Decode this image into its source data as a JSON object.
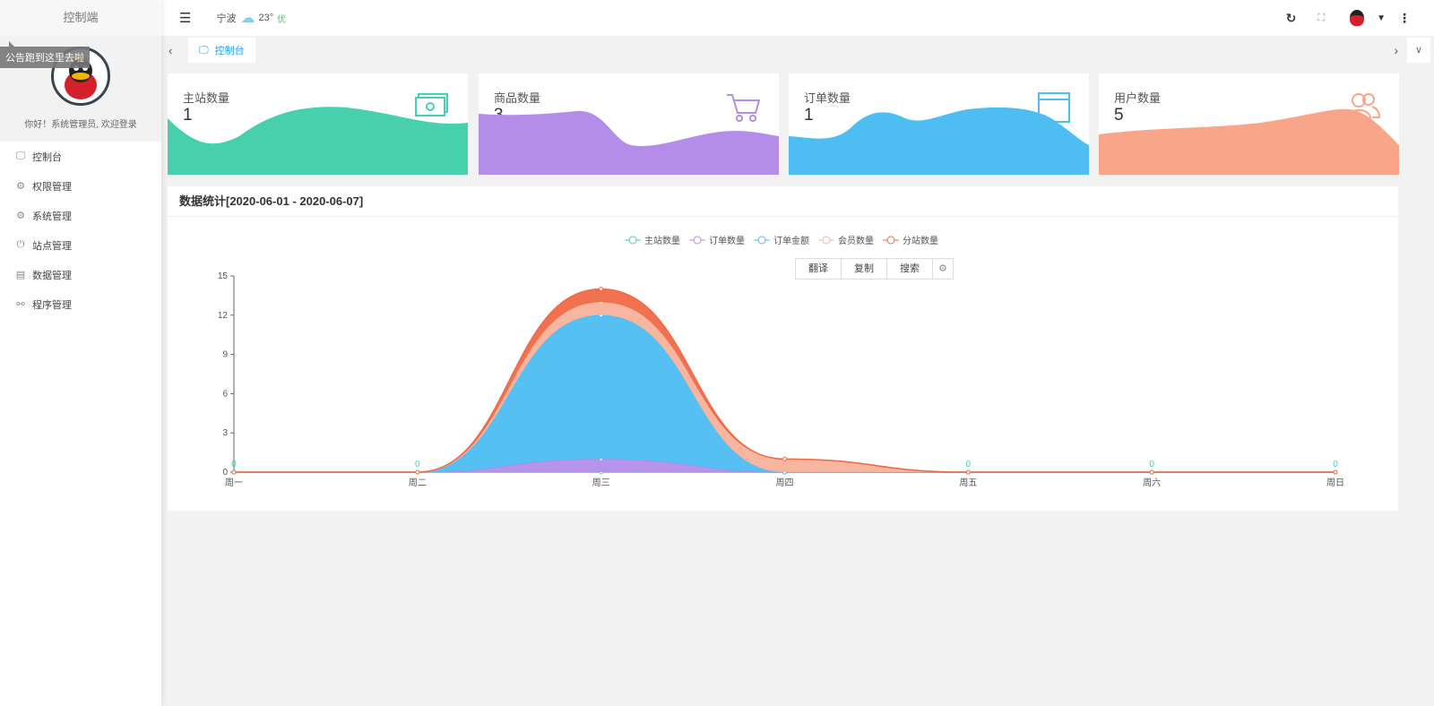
{
  "sidebar": {
    "brand": "控制端",
    "notice": "公告跑到这里去啦",
    "welcome": "你好！系统管理员, 欢迎登录",
    "items": [
      {
        "label": "控制台",
        "icon": "monitor-icon"
      },
      {
        "label": "权限管理",
        "icon": "gear-icon"
      },
      {
        "label": "系统管理",
        "icon": "gear-icon"
      },
      {
        "label": "站点管理",
        "icon": "power-icon"
      },
      {
        "label": "数据管理",
        "icon": "table-icon"
      },
      {
        "label": "程序管理",
        "icon": "link-icon"
      }
    ]
  },
  "header": {
    "city": "宁波",
    "temp": "23°",
    "air": "优"
  },
  "tabs": [
    {
      "label": "控制台"
    }
  ],
  "cards": [
    {
      "title": "主站数量",
      "value": "1",
      "color": "#47cfae",
      "icon": "money-icon"
    },
    {
      "title": "商品数量",
      "value": "3",
      "color": "#b38de8",
      "icon": "cart-icon"
    },
    {
      "title": "订单数量",
      "value": "1",
      "color": "#4dbdf2",
      "icon": "browser-window-icon"
    },
    {
      "title": "用户数量",
      "value": "5",
      "color": "#f8a58a",
      "icon": "users-icon"
    }
  ],
  "panel": {
    "title": "数据统计[2020-06-01 - 2020-06-07]",
    "toolbar": [
      "翻译",
      "复制",
      "搜索"
    ]
  },
  "chart_data": {
    "type": "area",
    "stacked": true,
    "smooth": true,
    "categories": [
      "周一",
      "周二",
      "周三",
      "周四",
      "周五",
      "周六",
      "周日"
    ],
    "ylim": [
      0,
      15
    ],
    "yticks": [
      0,
      3,
      6,
      9,
      12,
      15
    ],
    "legend_position": "top",
    "series": [
      {
        "name": "主站数量",
        "color": "#47cfae",
        "values": [
          0,
          0,
          0,
          0,
          0,
          0,
          0
        ],
        "labels": true
      },
      {
        "name": "订单数量",
        "color": "#b38de8",
        "values": [
          0,
          0,
          1,
          0,
          0,
          0,
          0
        ]
      },
      {
        "name": "订单金额",
        "color": "#4dbdf2",
        "values": [
          0,
          0,
          11,
          0,
          0,
          0,
          0
        ]
      },
      {
        "name": "会员数量",
        "color": "#f8b29c",
        "values": [
          0,
          0,
          1,
          1,
          0,
          0,
          0
        ]
      },
      {
        "name": "分站数量",
        "color": "#ef6a47",
        "values": [
          0,
          0,
          1,
          0,
          0,
          0,
          0
        ]
      }
    ]
  }
}
